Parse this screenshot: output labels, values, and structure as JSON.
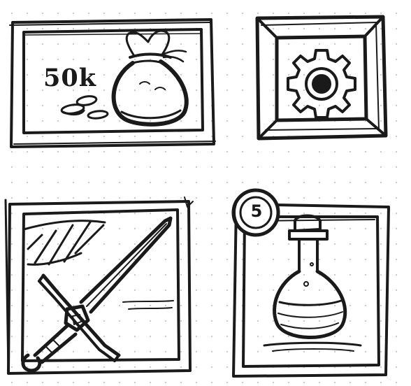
{
  "tiles": {
    "money": {
      "amount_label": "50k",
      "icon": "money-bag-icon"
    },
    "settings": {
      "icon": "gear-icon"
    },
    "weapon": {
      "icon": "sword-icon"
    },
    "potion": {
      "count": "5",
      "icon": "potion-flask-icon"
    }
  },
  "colors": {
    "ink": "#1a1a1a",
    "paper": "#ffffff",
    "dots": "#c9c9c9"
  }
}
